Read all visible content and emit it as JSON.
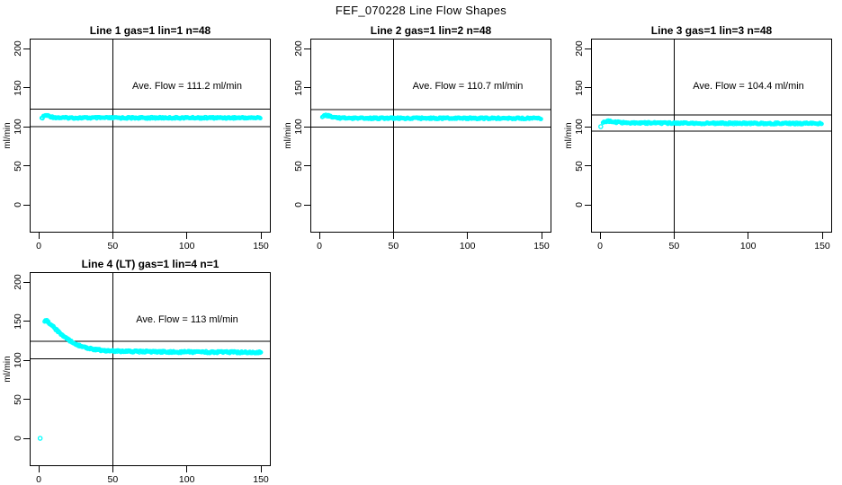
{
  "main_title": "FEF_070228  Line Flow Shapes",
  "colors": {
    "points": "#00ffff",
    "axis": "#000000",
    "background": "#ffffff",
    "text": "#000000"
  },
  "axes": {
    "x_ticks": [
      0,
      50,
      100,
      150
    ],
    "y_ticks": [
      0,
      50,
      100,
      150,
      200
    ],
    "y_label": "ml/min",
    "x_range": [
      0,
      150
    ],
    "y_range": [
      0,
      200
    ]
  },
  "chart_data": [
    {
      "type": "scatter",
      "title": "Line 1 gas=1 lin=1 n=48",
      "annotation": "Ave. Flow =  111.2  ml/min",
      "ave_flow_ml_min": 111.2,
      "ylabel": "ml/min",
      "vline_x": 50,
      "ref_lines_y": [
        122.3,
        100.1
      ],
      "series": {
        "name": "line1-flow",
        "point_style": "open-circle",
        "x_step": 0.6,
        "band_halfwidth": 0.9,
        "profile": [
          [
            2,
            110
          ],
          [
            3,
            112.5
          ],
          [
            4,
            114
          ],
          [
            5,
            114.5
          ],
          [
            7,
            113.5
          ],
          [
            9,
            112.3
          ],
          [
            12,
            111.6
          ],
          [
            16,
            111.3
          ],
          [
            30,
            111.2
          ],
          [
            60,
            111.2
          ],
          [
            100,
            111.3
          ],
          [
            150,
            111.3
          ]
        ]
      },
      "extra_points": []
    },
    {
      "type": "scatter",
      "title": "Line 2 gas=1 lin=2 n=48",
      "annotation": "Ave. Flow =  110.7  ml/min",
      "ave_flow_ml_min": 110.7,
      "ylabel": "ml/min",
      "vline_x": 50,
      "ref_lines_y": [
        121.8,
        99.6
      ],
      "series": {
        "name": "line2-flow",
        "point_style": "open-circle",
        "x_step": 0.6,
        "band_halfwidth": 0.9,
        "profile": [
          [
            2,
            111.5
          ],
          [
            3,
            113.5
          ],
          [
            4,
            114.5
          ],
          [
            6,
            114
          ],
          [
            8,
            112.8
          ],
          [
            11,
            111.7
          ],
          [
            15,
            111
          ],
          [
            25,
            110.8
          ],
          [
            60,
            110.7
          ],
          [
            100,
            110.7
          ],
          [
            150,
            110.6
          ]
        ]
      },
      "extra_points": []
    },
    {
      "type": "scatter",
      "title": "Line 3 gas=1 lin=3 n=48",
      "annotation": "Ave. Flow =  104.4  ml/min",
      "ave_flow_ml_min": 104.4,
      "ylabel": "ml/min",
      "vline_x": 50,
      "ref_lines_y": [
        114.8,
        94.0
      ],
      "series": {
        "name": "line3-flow",
        "point_style": "open-circle",
        "x_step": 0.6,
        "band_halfwidth": 0.9,
        "profile": [
          [
            2,
            104.5
          ],
          [
            3,
            106
          ],
          [
            5,
            107
          ],
          [
            7,
            106.8
          ],
          [
            10,
            105.8
          ],
          [
            14,
            105.2
          ],
          [
            20,
            104.9
          ],
          [
            40,
            104.6
          ],
          [
            70,
            104.3
          ],
          [
            110,
            104.1
          ],
          [
            150,
            104
          ]
        ]
      },
      "extra_points": [
        [
          0.5,
          100
        ]
      ]
    },
    {
      "type": "scatter",
      "title": "Line 4 (LT) gas=1 lin=4 n=1",
      "annotation": "Ave. Flow =  113  ml/min",
      "ave_flow_ml_min": 113,
      "ylabel": "ml/min",
      "vline_x": 50,
      "ref_lines_y": [
        124.3,
        101.7
      ],
      "series": {
        "name": "line4-flow",
        "point_style": "open-circle",
        "x_step": 0.5,
        "band_halfwidth": 1.0,
        "profile": [
          [
            4,
            150.5
          ],
          [
            5,
            150.8
          ],
          [
            6,
            149.5
          ],
          [
            7,
            147.8
          ],
          [
            8,
            146
          ],
          [
            9,
            144.2
          ],
          [
            10,
            142.3
          ],
          [
            11,
            140.5
          ],
          [
            12,
            138.7
          ],
          [
            13,
            137
          ],
          [
            14,
            135.3
          ],
          [
            15,
            133.6
          ],
          [
            16,
            132
          ],
          [
            17,
            130.5
          ],
          [
            18,
            129
          ],
          [
            19,
            127.6
          ],
          [
            20,
            126.2
          ],
          [
            21,
            124.9
          ],
          [
            22,
            123.7
          ],
          [
            23,
            122.6
          ],
          [
            24,
            121.6
          ],
          [
            25,
            120.6
          ],
          [
            26,
            119.7
          ],
          [
            28,
            118.1
          ],
          [
            30,
            116.8
          ],
          [
            32,
            115.8
          ],
          [
            34,
            115
          ],
          [
            36,
            114.3
          ],
          [
            38,
            113.7
          ],
          [
            40,
            113.2
          ],
          [
            43,
            112.6
          ],
          [
            46,
            112.2
          ],
          [
            50,
            111.8
          ],
          [
            55,
            111.4
          ],
          [
            60,
            111.2
          ],
          [
            70,
            110.9
          ],
          [
            80,
            110.7
          ],
          [
            90,
            110.5
          ],
          [
            100,
            110.4
          ],
          [
            115,
            110.2
          ],
          [
            130,
            110.1
          ],
          [
            150,
            110
          ]
        ]
      },
      "extra_points": [
        [
          1,
          0
        ]
      ]
    }
  ]
}
